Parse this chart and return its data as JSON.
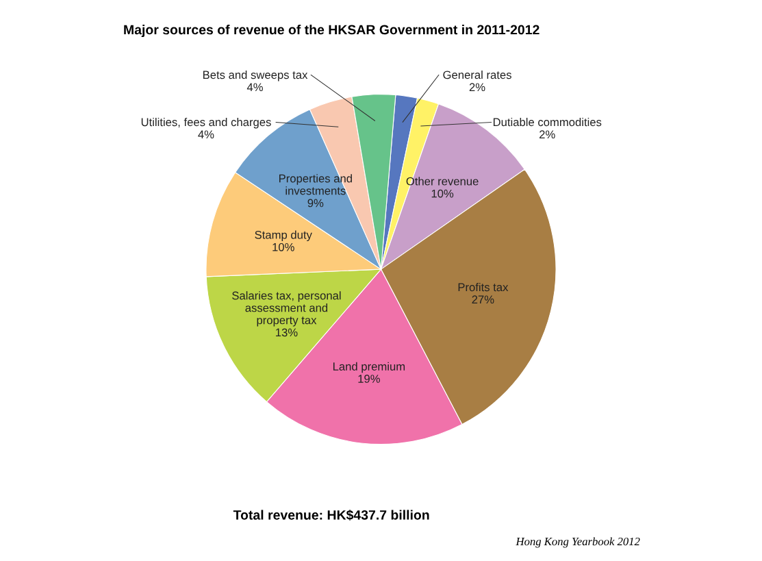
{
  "chart_data": {
    "type": "pie",
    "title": "Major sources of revenue of the HKSAR Government in 2011-2012",
    "categories": [
      "General rates",
      "Dutiable commodities",
      "Other revenue",
      "Profits tax",
      "Land premium",
      "Salaries tax, personal\nassessment and\nproperty tax",
      "Stamp duty",
      "Properties and\ninvestments",
      "Utilities, fees and charges",
      "Bets and sweeps tax"
    ],
    "values": [
      2,
      2,
      10,
      27,
      19,
      13,
      10,
      9,
      4,
      4
    ],
    "colors": [
      "#5677bf",
      "#fff266",
      "#c89fc9",
      "#a87e44",
      "#f072aa",
      "#bdd647",
      "#fdcb7a",
      "#6fa0cc",
      "#f9c8b0",
      "#66c38a"
    ],
    "value_labels": [
      "2%",
      "2%",
      "10%",
      "27%",
      "19%",
      "13%",
      "10%",
      "9%",
      "4%",
      "4%"
    ],
    "legend": false,
    "annotations": [
      "Total revenue: HK$437.7 billion",
      "Hong Kong Yearbook 2012"
    ]
  }
}
